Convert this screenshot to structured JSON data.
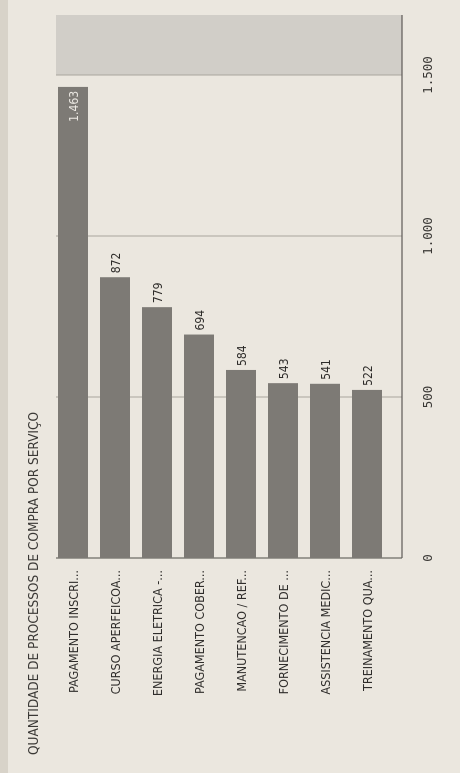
{
  "chart_data": {
    "type": "bar",
    "orientation": "horizontal",
    "title": "QUANTIDADE DE PROCESSOS DE COMPRA POR SERVIÇO",
    "categories": [
      "PAGAMENTO INSCRI...",
      "CURSO APERFEICOA...",
      "ENERGIA ELETRICA -...",
      "PAGAMENTO COBER...",
      "MANUTENCAO / REF...",
      "FORNECIMENTO DE ...",
      "ASSISTENCIA MEDIC...",
      "TREINAMENTO QUA..."
    ],
    "values": [
      1463,
      872,
      779,
      694,
      584,
      543,
      541,
      522
    ],
    "value_labels": [
      "1.463",
      "872",
      "779",
      "694",
      "584",
      "543",
      "541",
      "522"
    ],
    "axis_ticks": [
      0,
      500,
      1000,
      1500
    ],
    "axis_tick_labels": [
      "0",
      "500",
      "1.000",
      "1.500"
    ],
    "xlim": [
      0,
      1500
    ],
    "grid": true,
    "bar_color": "#7d7a75"
  }
}
